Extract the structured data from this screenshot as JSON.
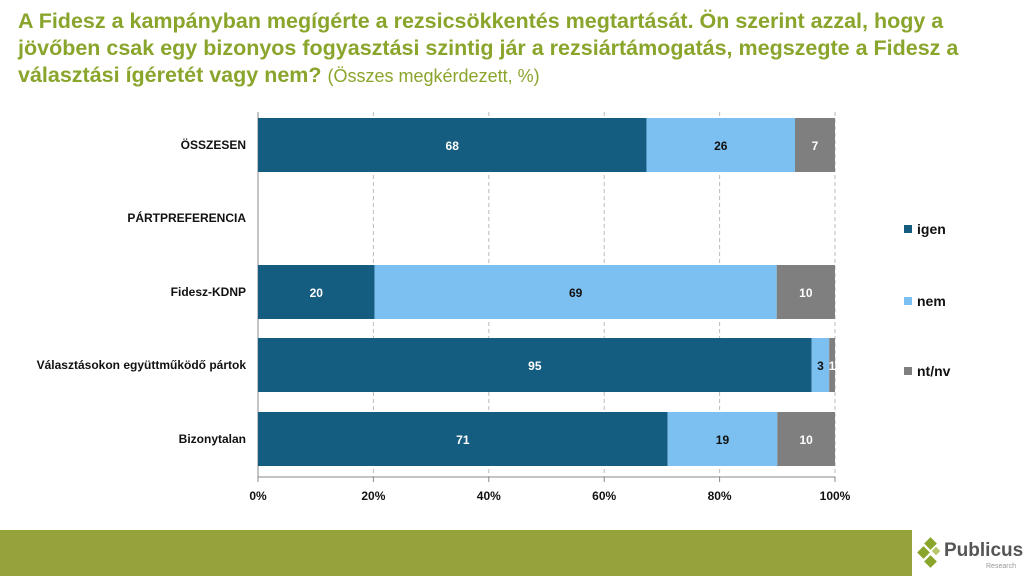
{
  "title": {
    "main": "A Fidesz a kampányban megígérte a rezsicsökkentés megtartását. Ön szerint azzal, hogy a jövőben csak egy bizonyos fogyasztási szintig jár a rezsiártámogatás, megszegte a Fidesz a választási ígéretét vagy nem?",
    "subtitle": "(Összes megkérdezett, %)"
  },
  "chart_data": {
    "type": "bar",
    "orientation": "horizontal",
    "stacked": true,
    "categories": [
      "ÖSSZESEN",
      "PÁRTPREFERENCIA",
      "Fidesz-KDNP",
      "Választásokon együttműködő pártok",
      "Bizonytalan"
    ],
    "series": [
      {
        "name": "igen",
        "color": "#155d80",
        "values": [
          68,
          null,
          20,
          95,
          71
        ]
      },
      {
        "name": "nem",
        "color": "#7cc0f2",
        "values": [
          26,
          null,
          69,
          3,
          19
        ]
      },
      {
        "name": "nt/nv",
        "color": "#7f7f7f",
        "values": [
          7,
          null,
          10,
          1,
          10
        ]
      }
    ],
    "xlim": [
      0,
      100
    ],
    "xticks": [
      "0%",
      "20%",
      "40%",
      "60%",
      "80%",
      "100%"
    ],
    "grid": true,
    "legend": "right"
  },
  "footer": {
    "logo": "Publicus",
    "logo_sub": "Research"
  }
}
